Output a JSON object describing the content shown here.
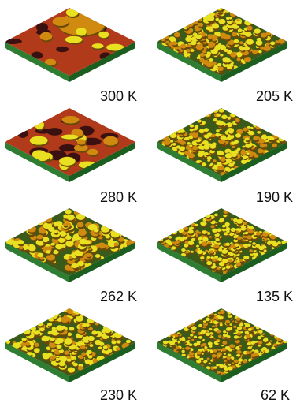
{
  "figure": {
    "panels": [
      {
        "label": "300 K",
        "feature_density": 0.12,
        "surface": "coalesced"
      },
      {
        "label": "280 K",
        "feature_density": 0.22,
        "surface": "coalesced"
      },
      {
        "label": "262 K",
        "feature_density": 0.4,
        "surface": "islands"
      },
      {
        "label": "230 K",
        "feature_density": 0.55,
        "surface": "islands"
      },
      {
        "label": "205 K",
        "feature_density": 0.65,
        "surface": "islands"
      },
      {
        "label": "190 K",
        "feature_density": 0.78,
        "surface": "islands"
      },
      {
        "label": "135 K",
        "feature_density": 0.9,
        "surface": "islands"
      },
      {
        "label": "62 K",
        "feature_density": 1.0,
        "surface": "islands"
      }
    ]
  },
  "colors": {
    "substrate_side": "#2e7d32",
    "substrate_side_dark": "#1b5e20",
    "surface_base": "#b03a1a",
    "hole_dark": "#3a1010",
    "island_yellow": "#e8e020",
    "island_orange": "#d08a10",
    "island_shadow": "#6a4a08",
    "label_text": "#111111"
  }
}
